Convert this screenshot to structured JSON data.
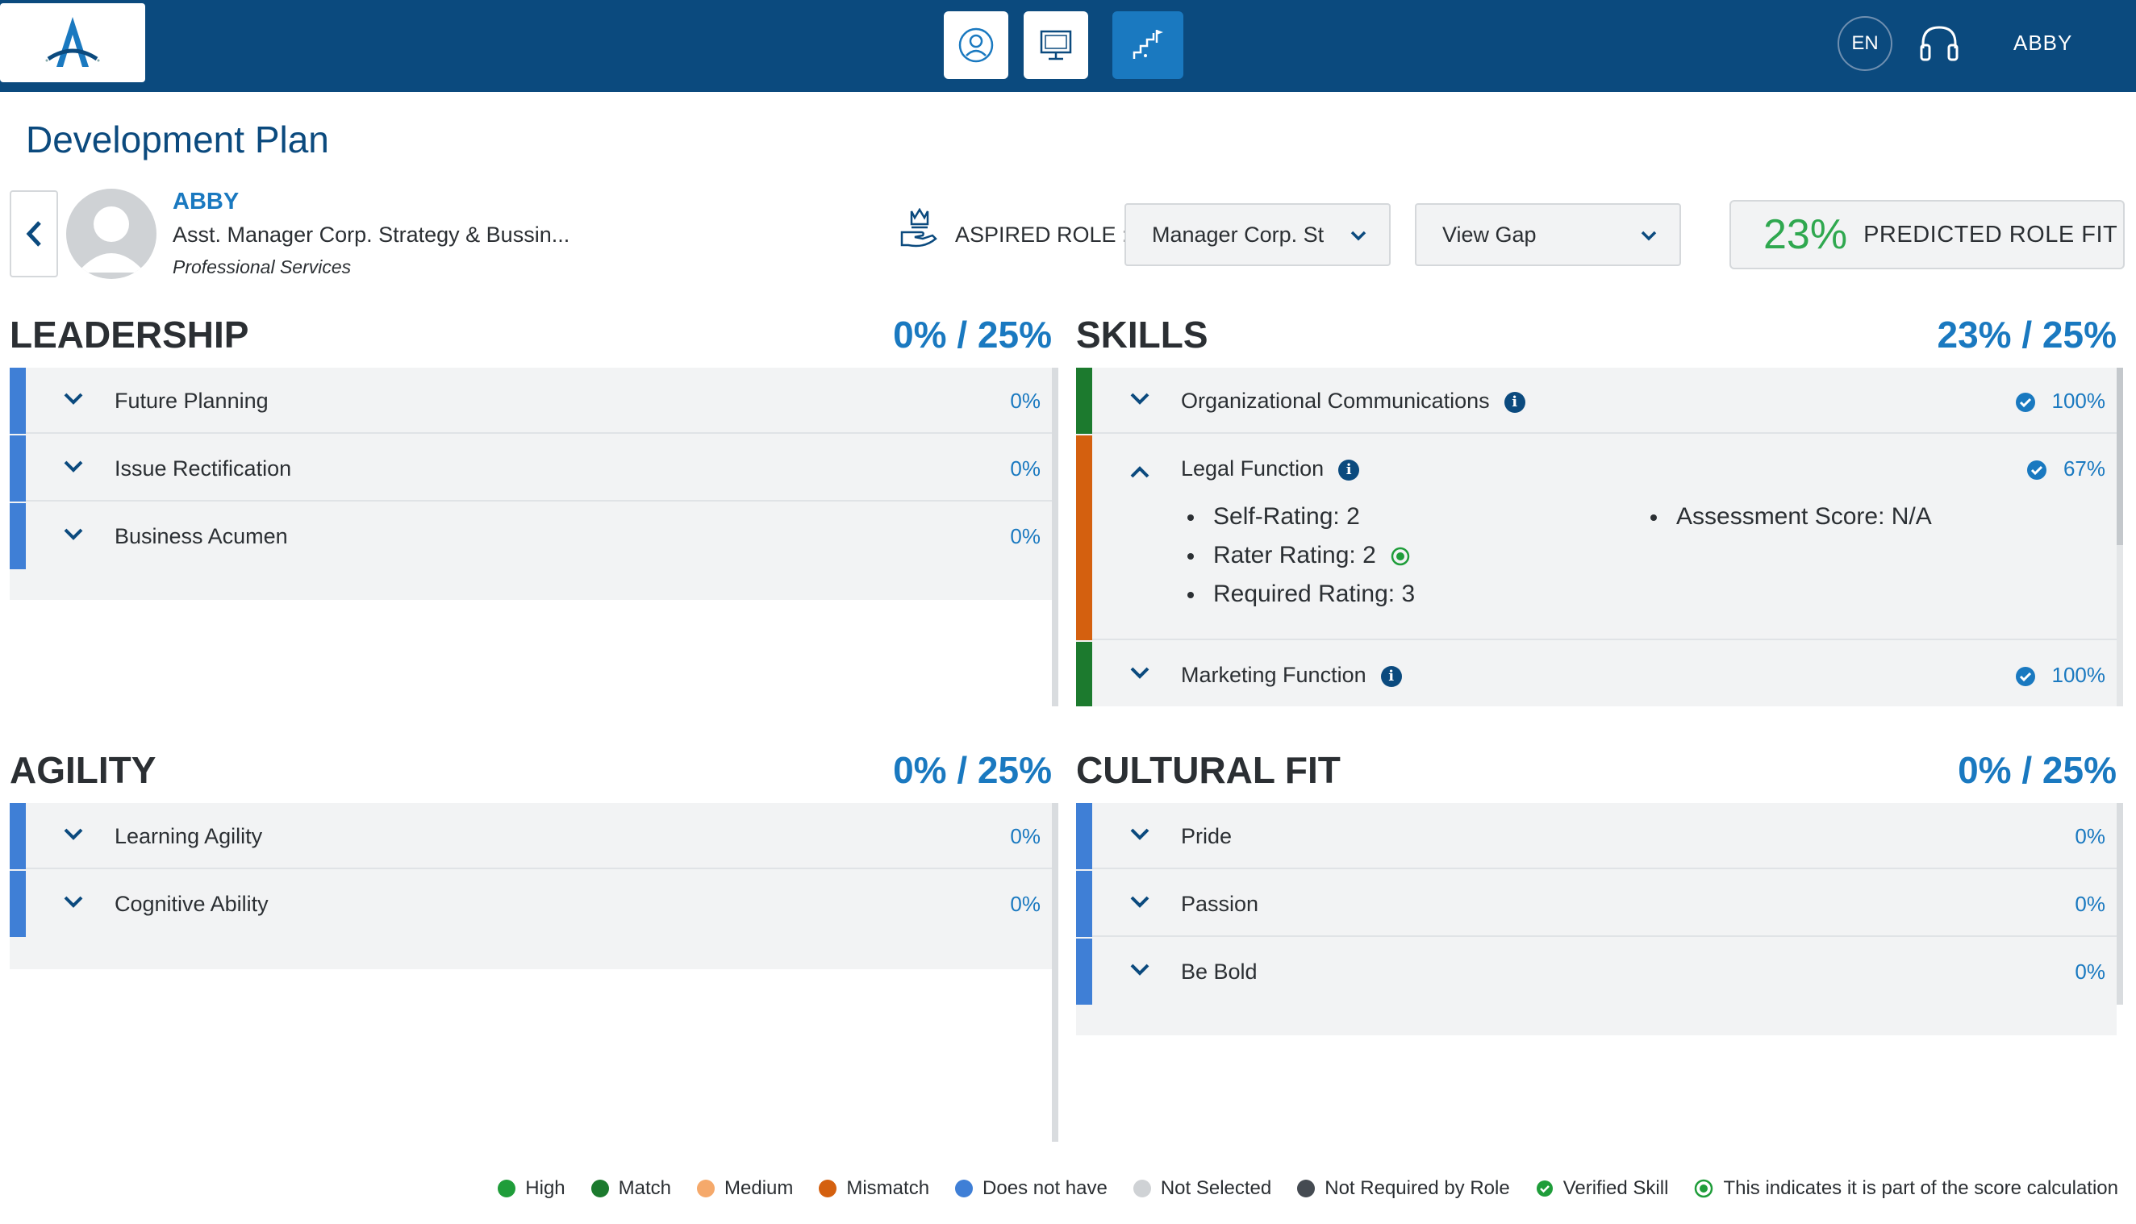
{
  "header": {
    "language": "EN",
    "user": "ABBY"
  },
  "page": {
    "title": "Development Plan"
  },
  "profile": {
    "name": "ABBY",
    "role": "Asst. Manager Corp. Strategy & Bussin...",
    "department": "Professional Services"
  },
  "aspired": {
    "label": "ASPIRED ROLE :",
    "role_value": "Manager Corp. St",
    "view_value": "View Gap"
  },
  "fit": {
    "percent": "23%",
    "label": "PREDICTED ROLE FIT"
  },
  "sections": {
    "leadership": {
      "title": "LEADERSHIP",
      "score": "0% / 25%",
      "items": [
        {
          "label": "Future Planning",
          "pct": "0%"
        },
        {
          "label": "Issue Rectification",
          "pct": "0%"
        },
        {
          "label": "Business Acumen",
          "pct": "0%"
        }
      ]
    },
    "skills": {
      "title": "SKILLS",
      "score": "23% / 25%",
      "items": [
        {
          "label": "Organizational Communications",
          "pct": "100%"
        },
        {
          "label": "Legal Function",
          "pct": "67%",
          "self_rating": "Self-Rating: 2",
          "rater_rating": "Rater Rating: 2",
          "required_rating": "Required Rating: 3",
          "assessment_score": "Assessment Score:  N/A"
        },
        {
          "label": "Marketing Function",
          "pct": "100%"
        }
      ]
    },
    "agility": {
      "title": "AGILITY",
      "score": "0% / 25%",
      "items": [
        {
          "label": "Learning Agility",
          "pct": "0%"
        },
        {
          "label": "Cognitive Ability",
          "pct": "0%"
        }
      ]
    },
    "cultural": {
      "title": "CULTURAL FIT",
      "score": "0% / 25%",
      "items": [
        {
          "label": "Pride",
          "pct": "0%"
        },
        {
          "label": "Passion",
          "pct": "0%"
        },
        {
          "label": "Be Bold",
          "pct": "0%"
        }
      ]
    }
  },
  "legend": [
    {
      "label": "High",
      "color": "#1f9d3a"
    },
    {
      "label": "Match",
      "color": "#1c7a2e"
    },
    {
      "label": "Medium",
      "color": "#f5a96b"
    },
    {
      "label": "Mismatch",
      "color": "#d4600f"
    },
    {
      "label": "Does not have",
      "color": "#3f7fd6"
    },
    {
      "label": "Not Selected",
      "color": "#cfd2d5"
    },
    {
      "label": "Not Required by Role",
      "color": "#454b52"
    },
    {
      "label": "Verified Skill",
      "color": "#1f9d3a"
    },
    {
      "label": "This indicates it is part of the score calculation",
      "color": "#1f9d3a"
    }
  ],
  "colors": {
    "brand": "#0b4a7e",
    "accent": "#1a79c0",
    "does_not_have": "#3f7fd6",
    "match": "#1c7a2e",
    "mismatch": "#d4600f"
  }
}
